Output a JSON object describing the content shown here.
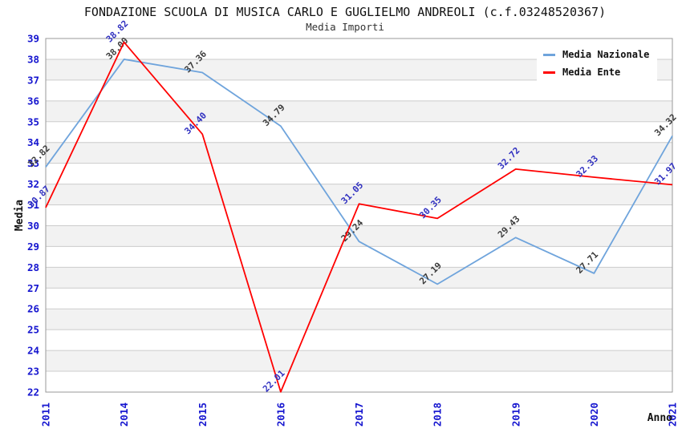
{
  "header": {
    "title": "FONDAZIONE SCUOLA DI MUSICA CARLO E GUGLIELMO ANDREOLI (c.f.03248520367)",
    "subtitle": "Media Importi"
  },
  "legend": {
    "position": "top-right",
    "items": [
      {
        "label": "Media Nazionale",
        "color": "#6FA4DC"
      },
      {
        "label": "Media Ente",
        "color": "#FF0000"
      }
    ]
  },
  "chart_data": {
    "type": "line",
    "title": "FONDAZIONE SCUOLA DI MUSICA CARLO E GUGLIELMO ANDREOLI (c.f.03248520367)",
    "subtitle": "Media Importi",
    "xlabel": "Anno",
    "ylabel": "Media",
    "categories": [
      "2011",
      "2014",
      "2015",
      "2016",
      "2017",
      "2018",
      "2019",
      "2020",
      "2021"
    ],
    "series": [
      {
        "name": "Media Nazionale",
        "color": "#6FA4DC",
        "label_color": "#3c3c3c",
        "values": [
          32.82,
          38.0,
          37.36,
          34.79,
          29.24,
          27.19,
          29.43,
          27.71,
          34.32
        ]
      },
      {
        "name": "Media Ente",
        "color": "#FF0000",
        "label_color": "#3030c0",
        "values": [
          30.87,
          38.82,
          34.4,
          22.01,
          31.05,
          30.35,
          32.72,
          32.33,
          31.97
        ]
      }
    ],
    "ylim": [
      22,
      39
    ],
    "y_tick_step": 1,
    "grid": true,
    "legend_position": "top-right",
    "colors": {
      "tick_label": "#1515cf",
      "axis_label": "#111111",
      "grid_line": "#cccccc",
      "band_fill": "#f2f2f2",
      "plot_border": "#999999",
      "background": "#ffffff"
    }
  }
}
